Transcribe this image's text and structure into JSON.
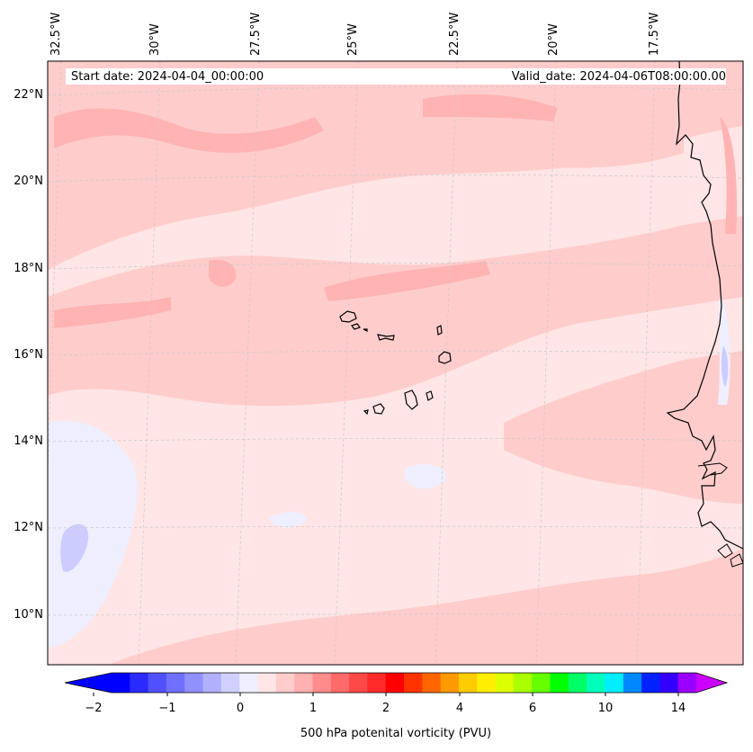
{
  "map": {
    "region": "Eastern tropical Atlantic / Cape Verde",
    "lon_labels": [
      "32.5°W",
      "30°W",
      "27.5°W",
      "25°W",
      "22.5°W",
      "20°W",
      "17.5°W"
    ],
    "lat_labels": [
      "22°N",
      "20°N",
      "18°N",
      "16°N",
      "14°N",
      "12°N",
      "10°N"
    ],
    "start_date": "Start date: 2024-04-04_00:00:00",
    "valid_date": "Valid_date: 2024-04-06T08:00:00.00",
    "field_colors": {
      "very_light_pink": "#ffe5e5",
      "light_pink": "#ffcccc",
      "pink": "#ffb3b3",
      "pale_blue": "#eeeeff",
      "light_blue": "#ccccff"
    }
  },
  "colorbar": {
    "title": "500 hPa potenital vorticity (PVU)",
    "tick_labels": [
      "−2",
      "−1",
      "0",
      "1",
      "2",
      "4",
      "6",
      "10",
      "14"
    ],
    "colors": [
      "#0000ff",
      "#2a2aff",
      "#5050ff",
      "#7070ff",
      "#9090ff",
      "#b0b0ff",
      "#d0d0ff",
      "#eeeeff",
      "#ffe5e5",
      "#ffcccc",
      "#ffb0b0",
      "#ff8c8c",
      "#ff6a6a",
      "#ff4848",
      "#ff2a2a",
      "#ff0000",
      "#ff3300",
      "#ff6600",
      "#ff9900",
      "#ffcc00",
      "#ffee00",
      "#ddff00",
      "#aaff00",
      "#66ff00",
      "#00ff00",
      "#00ff66",
      "#00ffbb",
      "#00eeff",
      "#0088ff",
      "#0022ff",
      "#3300ff",
      "#9900ff"
    ],
    "under_color": "#0000ff",
    "over_color": "#cc00ff"
  }
}
